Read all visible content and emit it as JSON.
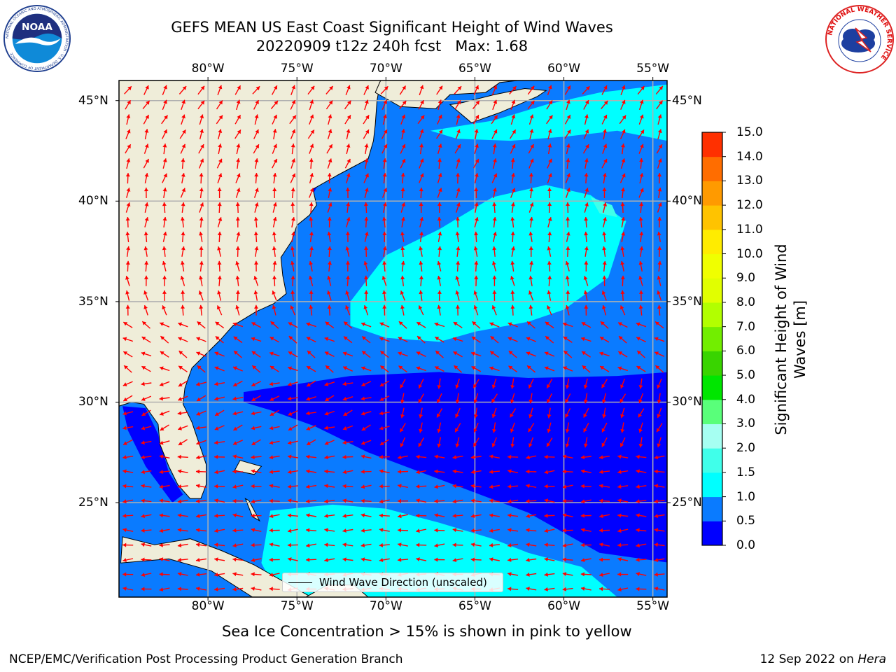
{
  "header": {
    "title_line1": "GEFS MEAN US East Coast Significant Height of Wind Waves",
    "title_line2": "20220909 t12z 240h fcst   Max: 1.68"
  },
  "logos": {
    "noaa_text": "NOAA",
    "noaa_ring_text": "NATIONAL OCEANIC AND ATMOSPHERIC ADMINISTRATION · U.S. DEPARTMENT OF COMMERCE",
    "nws_ring_text": "NATIONAL WEATHER SERVICE"
  },
  "map": {
    "extent": {
      "lon_min": -85,
      "lon_max": -54.2,
      "lat_min": 20.3,
      "lat_max": 46.0
    },
    "lon_ticks": [
      {
        "value": -80,
        "label": "80°W"
      },
      {
        "value": -75,
        "label": "75°W"
      },
      {
        "value": -70,
        "label": "70°W"
      },
      {
        "value": -65,
        "label": "65°W"
      },
      {
        "value": -60,
        "label": "60°W"
      },
      {
        "value": -55,
        "label": "55°W"
      }
    ],
    "lat_ticks": [
      {
        "value": 45,
        "label": "45°N"
      },
      {
        "value": 40,
        "label": "40°N"
      },
      {
        "value": 35,
        "label": "35°N"
      },
      {
        "value": 30,
        "label": "30°N"
      },
      {
        "value": 25,
        "label": "25°N"
      }
    ],
    "grid": true,
    "colors": {
      "land": "#efedd9",
      "coast": "#000000",
      "grid": "#b0b0b0",
      "arrow": "#ff0000"
    },
    "legend": "Wind Wave Direction (unscaled)"
  },
  "colorbar": {
    "title": "Significant Height of Wind Waves [m]",
    "title_line1": "Significant Height of Wind",
    "title_line2": "Waves [m]",
    "levels": [
      "0.0",
      "0.5",
      "1.0",
      "1.5",
      "2.0",
      "3.0",
      "4.0",
      "5.0",
      "6.0",
      "7.0",
      "8.0",
      "9.0",
      "10.0",
      "11.0",
      "12.0",
      "13.0",
      "14.0",
      "15.0"
    ],
    "colors": [
      "#0000ff",
      "#0a7bff",
      "#00ffff",
      "#40ffea",
      "#a6fff2",
      "#59ff7a",
      "#00e600",
      "#39d400",
      "#72ee00",
      "#b2ff00",
      "#e1ff00",
      "#f0ff00",
      "#ffec00",
      "#ffc300",
      "#ff9a00",
      "#ff6d00",
      "#ff3000",
      "#ff0000"
    ]
  },
  "caption": "Sea Ice Concentration > 15% is shown in pink to yellow",
  "footer": {
    "left": "NCEP/EMC/Verification Post Processing Product Generation Branch",
    "date": "12 Sep 2022 on",
    "host": "Hera"
  }
}
